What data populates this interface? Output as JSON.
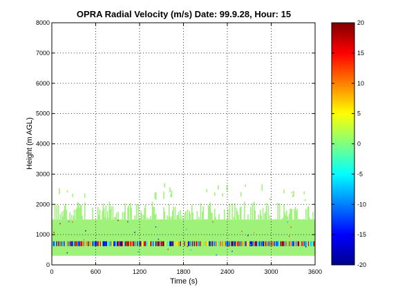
{
  "chart_data": {
    "type": "heatmap",
    "title": "OPRA Radial Velocity (m/s)  Date: 99.9.28, Hour: 15",
    "xlabel": "Time (s)",
    "ylabel": "Height (m AGL)",
    "xlim": [
      0,
      3600
    ],
    "ylim": [
      0,
      8000
    ],
    "xticks": [
      0,
      600,
      1200,
      1800,
      2400,
      3000,
      3600
    ],
    "yticks": [
      0,
      1000,
      2000,
      3000,
      4000,
      5000,
      6000,
      7000,
      8000
    ],
    "grid": true,
    "colorbar": {
      "range": [
        -20,
        20
      ],
      "ticks": [
        -20,
        -15,
        -10,
        -5,
        0,
        5,
        10,
        15,
        20
      ],
      "colormap": "jet"
    },
    "regions": [
      {
        "x": [
          0,
          3600
        ],
        "y": [
          300,
          1500
        ],
        "value": -1,
        "desc": "continuous near-zero echo block"
      },
      {
        "x": [
          0,
          3600
        ],
        "y": [
          600,
          800
        ],
        "value": "mixed",
        "desc": "noisy band with full range of velocities"
      },
      {
        "x": [
          0,
          3600
        ],
        "y": [
          1500,
          2100
        ],
        "value": -1,
        "desc": "intermittent echoes"
      },
      {
        "x": [
          300,
          3600
        ],
        "y": [
          2100,
          2800
        ],
        "value": -1,
        "desc": "sparse echoes"
      }
    ]
  },
  "colors": {
    "background": "#ffffff",
    "frame": "#000000",
    "echo": "#9ef27a"
  }
}
